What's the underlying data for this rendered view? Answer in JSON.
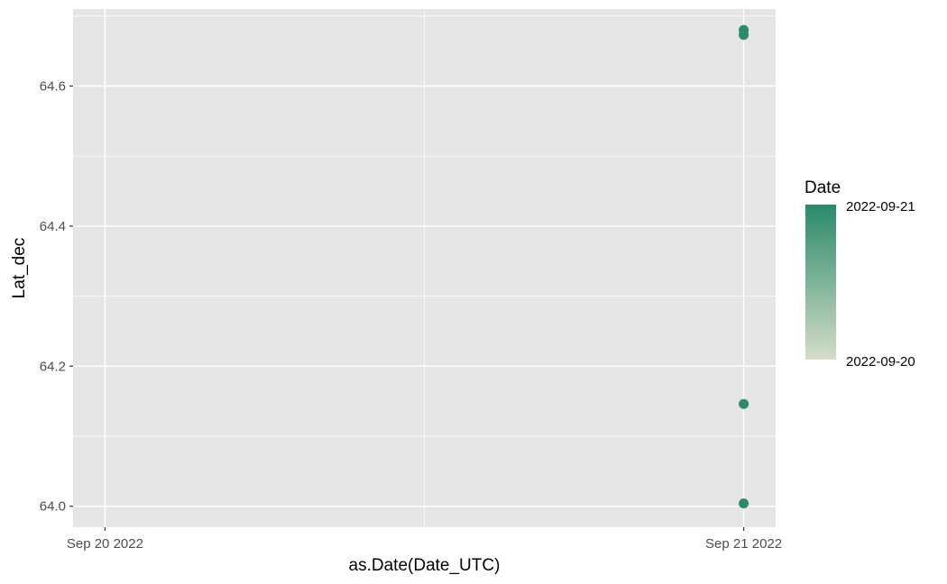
{
  "chart_data": {
    "type": "scatter",
    "title": "",
    "xlabel": "as.Date(Date_UTC)",
    "ylabel": "Lat_dec",
    "x_scale": "date",
    "x_ticks": [
      "Sep 20 2022",
      "Sep 21 2022"
    ],
    "xlim": [
      "2022-09-19",
      "2022-09-21"
    ],
    "y_ticks": [
      "64.0",
      "64.2",
      "64.4",
      "64.6"
    ],
    "ylim": [
      63.97,
      64.71
    ],
    "grid": true,
    "points": [
      {
        "x": "2022-09-21",
        "y": 64.68
      },
      {
        "x": "2022-09-21",
        "y": 64.673
      },
      {
        "x": "2022-09-21",
        "y": 64.146
      },
      {
        "x": "2022-09-21",
        "y": 64.004
      }
    ],
    "legend": {
      "title": "Date",
      "type": "colorbar",
      "placement": "right",
      "high_label": "2022-09-21",
      "low_label": "2022-09-20",
      "high_color": "#2a8a6c",
      "low_color": "#d3dec6"
    },
    "colors": {
      "panel": "#e5e5e5",
      "grid": "#ffffff",
      "point": "#2a8a6c"
    }
  }
}
